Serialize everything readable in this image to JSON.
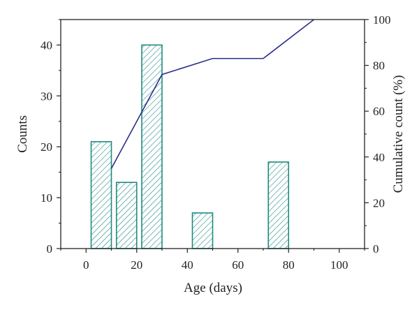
{
  "chart_data": {
    "type": "bar+line",
    "xlabel": "Age (days)",
    "ylabel_left": "Counts",
    "ylabel_right": "Cumulative count (%)",
    "xlim": [
      -10,
      110
    ],
    "ylim_left": [
      0,
      45
    ],
    "ylim_right": [
      0,
      100
    ],
    "x_ticks": [
      0,
      20,
      40,
      60,
      80,
      100
    ],
    "y_left_ticks": [
      0,
      10,
      20,
      30,
      40
    ],
    "y_right_ticks": [
      0,
      20,
      40,
      60,
      80,
      100
    ],
    "bars": [
      {
        "x_start": 2,
        "x_end": 10,
        "value": 21
      },
      {
        "x_start": 12,
        "x_end": 20,
        "value": 13
      },
      {
        "x_start": 22,
        "x_end": 30,
        "value": 40
      },
      {
        "x_start": 42,
        "x_end": 50,
        "value": 7
      },
      {
        "x_start": 72,
        "x_end": 80,
        "value": 17
      }
    ],
    "cumulative_line": {
      "x": [
        10,
        30,
        50,
        70,
        90
      ],
      "y": [
        35,
        76,
        83,
        83,
        100
      ]
    },
    "grid": false,
    "legend": "none",
    "colors": {
      "bar_stroke": "#1f8a80",
      "bar_hatch": "#1f8a80",
      "line": "#2b2f8a",
      "axis": "#222222"
    }
  }
}
